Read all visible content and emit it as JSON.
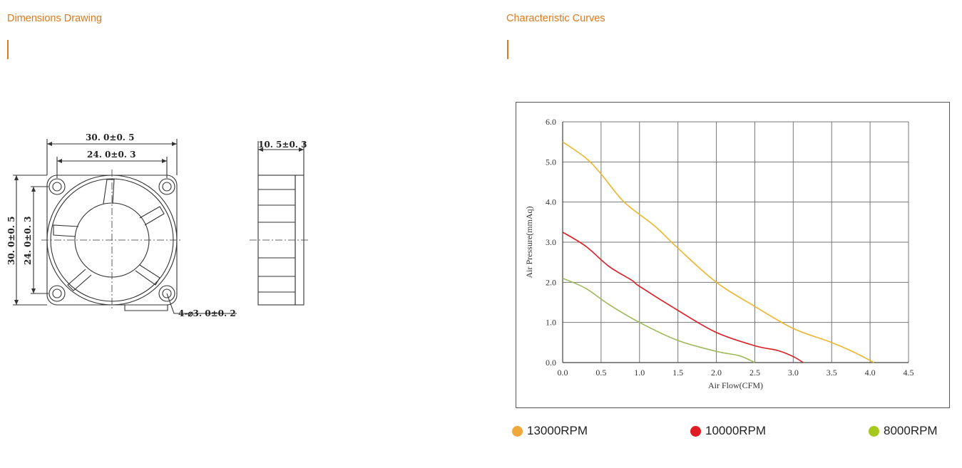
{
  "left_section": {
    "title": "Dimensions Drawing",
    "dims": {
      "outer_width": "30. 0±0. 5",
      "inner_width": "24. 0±0. 3",
      "outer_height": "30. 0±0. 5",
      "inner_height": "24. 0±0. 3",
      "thickness": "10. 5±0. 3",
      "hole": "4-⌀3. 0±0. 2"
    }
  },
  "right_section": {
    "title": "Characteristic Curves"
  },
  "colors": {
    "accent": "#e0791c",
    "s13000": "#f0b429",
    "s10000": "#e01b24",
    "s8000": "#9fb85a"
  },
  "legend": [
    {
      "label": "13000RPM",
      "color": "#f0a83a"
    },
    {
      "label": "10000RPM",
      "color": "#e01b24"
    },
    {
      "label": "8000RPM",
      "color": "#a6c81d"
    }
  ],
  "chart_data": {
    "type": "line",
    "xlabel": "Air Flow(CFM)",
    "ylabel": "Air Pressure(mmAq)",
    "xlim": [
      0,
      4.5
    ],
    "ylim": [
      0,
      6
    ],
    "xticks": [
      "0.0",
      "0.5",
      "1.0",
      "1.5",
      "2.0",
      "2.5",
      "3.0",
      "3.5",
      "4.0",
      "4.5"
    ],
    "yticks": [
      "0.0",
      "1.0",
      "2.0",
      "3.0",
      "4.0",
      "5.0",
      "6.0"
    ],
    "grid": true,
    "series": [
      {
        "name": "13000RPM",
        "color": "#f0b429",
        "x": [
          0,
          0.3,
          0.5,
          0.8,
          1.2,
          1.5,
          2.0,
          2.5,
          3.0,
          3.5,
          3.8,
          4.05
        ],
        "y": [
          5.5,
          5.1,
          4.7,
          4.0,
          3.4,
          2.85,
          2.0,
          1.4,
          0.85,
          0.5,
          0.25,
          0.0
        ]
      },
      {
        "name": "10000RPM",
        "color": "#e01b24",
        "x": [
          0,
          0.3,
          0.6,
          0.9,
          1.0,
          1.5,
          2.0,
          2.5,
          2.8,
          3.0,
          3.13
        ],
        "y": [
          3.25,
          2.9,
          2.4,
          2.05,
          1.9,
          1.3,
          0.75,
          0.42,
          0.3,
          0.15,
          0.0
        ]
      },
      {
        "name": "8000RPM",
        "color": "#9fb85a",
        "x": [
          0,
          0.3,
          0.6,
          1.0,
          1.5,
          2.0,
          2.3,
          2.5
        ],
        "y": [
          2.1,
          1.85,
          1.45,
          1.0,
          0.55,
          0.28,
          0.17,
          0.0
        ]
      }
    ]
  }
}
